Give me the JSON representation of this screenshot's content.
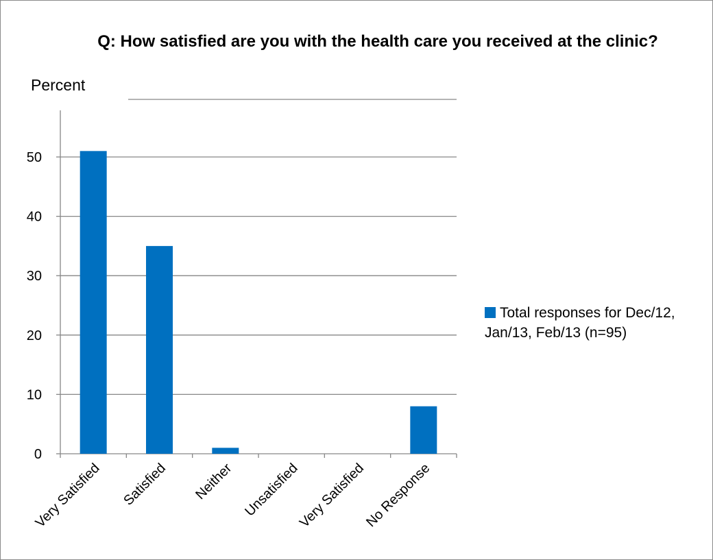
{
  "chart_data": {
    "type": "bar",
    "title": "Q:  How satisfied are you with the health care you received at the clinic?",
    "ylabel": "Percent",
    "xlabel": "",
    "categories": [
      "Very Satisfied",
      "Satisfied",
      "Neither",
      "Unsatisfied",
      "Very Satisfied",
      "No Response"
    ],
    "series": [
      {
        "name": "Total responses for Dec/12, Jan/13, Feb/13 (n=95)",
        "values": [
          51,
          35,
          1,
          0,
          0,
          8
        ],
        "color": "#0070C0"
      }
    ],
    "ylim": [
      0,
      58
    ],
    "yticks": [
      0,
      10,
      20,
      30,
      40,
      50
    ],
    "grid": true,
    "legend_position": "right"
  }
}
